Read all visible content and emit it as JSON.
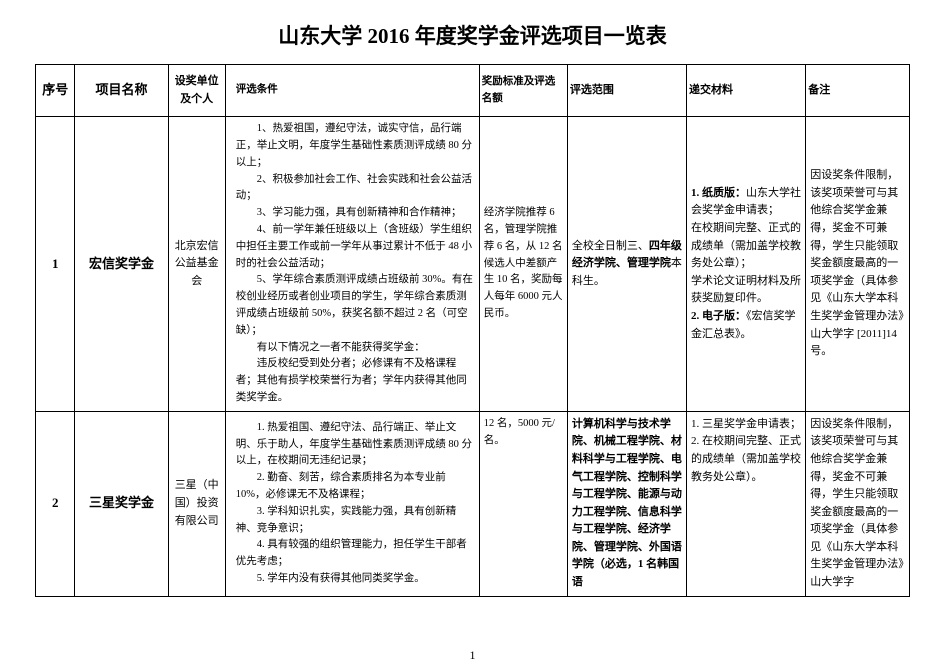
{
  "title": "山东大学 2016 年度奖学金评选项目一览表",
  "headers": {
    "seq": "序号",
    "name": "项目名称",
    "org": "设奖单位及个人",
    "cond": "评选条件",
    "std": "奖励标准及评选名额",
    "scope": "评选范围",
    "mat": "递交材料",
    "note": "备注"
  },
  "rows": [
    {
      "seq": "1",
      "name": "宏信奖学金",
      "org": "北京宏信公益基金会",
      "cond_lines": [
        "　　1、热爱祖国，遵纪守法，诚实守信，品行端正，举止文明，年度学生基础性素质测评成绩 80 分以上；",
        "　　2、积极参加社会工作、社会实践和社会公益活动；",
        "　　3、学习能力强，具有创新精神和合作精神；",
        "　　4、前一学年兼任班级以上（含班级）学生组织中担任主要工作或前一学年从事过累计不低于 48 小时的社会公益活动；",
        "　　5、学年综合素质测评成绩占班级前 30%。有在校创业经历或者创业项目的学生，学年综合素质测评成绩占班级前 50%，获奖名额不超过 2 名（可空缺）；",
        "　　有以下情况之一者不能获得奖学金：",
        "　　违反校纪受到处分者；必修课有不及格课程者；其他有损学校荣誉行为者；学年内获得其他同类奖学金。"
      ],
      "std_text": "经济学院推荐 6 名，管理学院推荐 6 名，从 12 名候选人中差额产生 10 名，奖励每人每年 6000 元人民币。",
      "scope_pre": "全校全日制三、",
      "scope_bold": "四年级经济学院、管理学院",
      "scope_post": "本科生。",
      "mat_l1b": "1. 纸质版：",
      "mat_l1": "山东大学社会奖学金申请表；",
      "mat_l2": "在校期间完整、正式的成绩单（需加盖学校教务处公章）；",
      "mat_l3": "学术论文证明材料及所获奖励复印件。",
      "mat_l4b": "2. 电子版：",
      "mat_l4": "《宏信奖学金汇总表》。",
      "note_text": "因设奖条件限制，该奖项荣誉可与其他综合奖学金兼得，奖金不可兼得，学生只能领取奖金额度最高的一项奖学金（具体参见《山东大学本科生奖学金管理办法》山大学字 [2011]14 号。"
    },
    {
      "seq": "2",
      "name": "三星奖学金",
      "org": "三星（中国）投资有限公司",
      "cond_lines": [
        "　　1. 热爱祖国、遵纪守法、品行端正、举止文明、乐于助人，年度学生基础性素质测评成绩 80 分以上，在校期间无违纪记录；",
        "　　2. 勤奋、刻苦，综合素质排名为本专业前 10%，必修课无不及格课程；",
        "　　3. 学科知识扎实，实践能力强，具有创新精神、竞争意识；",
        "　　4. 具有较强的组织管理能力，担任学生干部者优先考虑；",
        "　　5. 学年内没有获得其他同类奖学金。"
      ],
      "std_text": "12 名，5000 元/名。",
      "scope_bold": "计算机科学与技术学院、机械工程学院、材料科学与工程学院、电气工程学院、控制科学与工程学院、能源与动力工程学院、信息科学与工程学院、经济学院、管理学院、外国语学院（必选，1 名韩国语",
      "mat_l1": "1. 三星奖学金申请表；",
      "mat_l2": "2. 在校期间完整、正式的成绩单（需加盖学校教务处公章）。",
      "note_text": "因设奖条件限制，该奖项荣誉可与其他综合奖学金兼得，奖金不可兼得，学生只能领取奖金额度最高的一项奖学金（具体参见《山东大学本科生奖学金管理办法》山大学字"
    }
  ],
  "pagenum": "1"
}
